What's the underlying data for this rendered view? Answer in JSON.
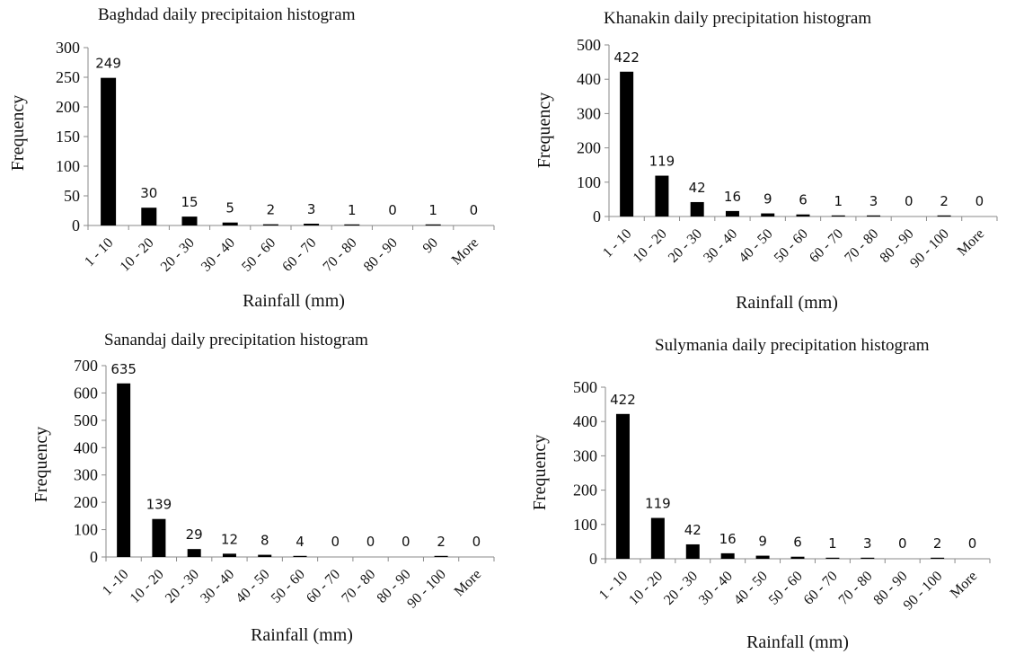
{
  "chart_data": [
    {
      "type": "bar",
      "title": "Baghdad daily precipitaion histogram",
      "xlabel": "Rainfall (mm)",
      "ylabel": "Frequency",
      "ylim": [
        0,
        300
      ],
      "yticks": [
        0,
        50,
        100,
        150,
        200,
        250,
        300
      ],
      "categories": [
        "1 - 10",
        "10 - 20",
        "20 - 30",
        "30 - 40",
        "50 - 60",
        "60 - 70",
        "70 - 80",
        "80 - 90",
        "90",
        "More"
      ],
      "values": [
        249,
        30,
        15,
        5,
        2,
        3,
        1,
        0,
        1,
        0
      ],
      "colors": {
        "bar": "#000000",
        "axis": "#8a8a8a"
      }
    },
    {
      "type": "bar",
      "title": "Khanakin daily precipitation histogram",
      "xlabel": "Rainfall (mm)",
      "ylabel": "Frequency",
      "ylim": [
        0,
        500
      ],
      "yticks": [
        0,
        100,
        200,
        300,
        400,
        500
      ],
      "categories": [
        "1 - 10",
        "10 - 20",
        "20 - 30",
        "30 - 40",
        "40 - 50",
        "50 - 60",
        "60 - 70",
        "70 - 80",
        "80 - 90",
        "90 - 100",
        "More"
      ],
      "values": [
        422,
        119,
        42,
        16,
        9,
        6,
        1,
        3,
        0,
        2,
        0
      ],
      "colors": {
        "bar": "#000000",
        "axis": "#8a8a8a"
      }
    },
    {
      "type": "bar",
      "title": "Sanandaj daily precipitation histogram",
      "xlabel": "Rainfall (mm)",
      "ylabel": "Frequency",
      "ylim": [
        0,
        700
      ],
      "yticks": [
        0,
        100,
        200,
        300,
        400,
        500,
        600,
        700
      ],
      "categories": [
        "1 -10",
        "10 - 20",
        "20 - 30",
        "30 - 40",
        "40 - 50",
        "50 - 60",
        "60 - 70",
        "70 - 80",
        "80 - 90",
        "90 - 100",
        "More"
      ],
      "values": [
        635,
        139,
        29,
        12,
        8,
        4,
        0,
        0,
        0,
        2,
        0
      ],
      "colors": {
        "bar": "#000000",
        "axis": "#8a8a8a"
      }
    },
    {
      "type": "bar",
      "title": "Sulymania daily precipitation histogram",
      "xlabel": "Rainfall (mm)",
      "ylabel": "Frequency",
      "ylim": [
        0,
        500
      ],
      "yticks": [
        0,
        100,
        200,
        300,
        400,
        500
      ],
      "categories": [
        "1 - 10",
        "10 - 20",
        "20 - 30",
        "30 - 40",
        "40 - 50",
        "50 - 60",
        "60 - 70",
        "70 - 80",
        "80 - 90",
        "90 - 100",
        "More"
      ],
      "values": [
        422,
        119,
        42,
        16,
        9,
        6,
        1,
        3,
        0,
        2,
        0
      ],
      "colors": {
        "bar": "#000000",
        "axis": "#8a8a8a"
      }
    }
  ]
}
